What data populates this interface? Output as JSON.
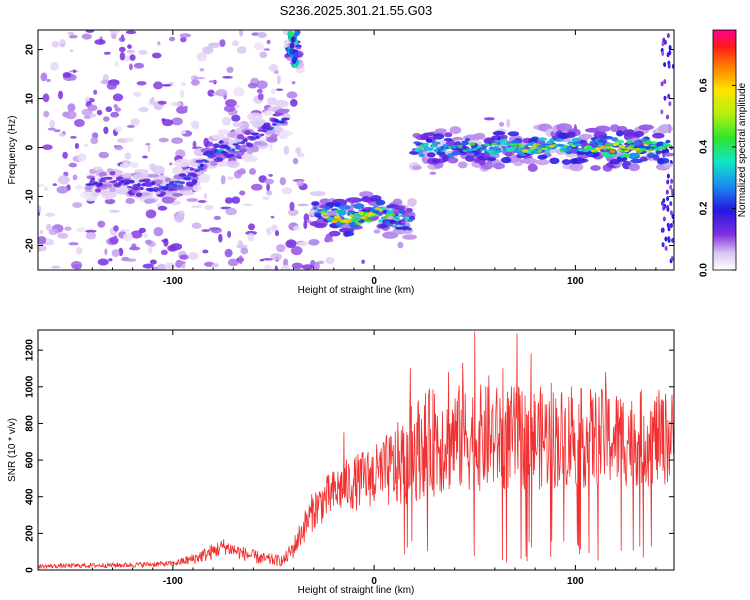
{
  "title": "S236.2025.301.21.55.G03",
  "colors": {
    "snr_line": "#f03030",
    "axis": "#000000"
  },
  "chart_data": [
    {
      "type": "heatmap",
      "name": "spectrogram",
      "xlabel": "Height of straight line (km)",
      "ylabel": "Frequency (Hz)",
      "xlim": [
        -167,
        149
      ],
      "ylim": [
        -25,
        24
      ],
      "xticks": [
        "-100",
        "0",
        "100"
      ],
      "xtick_values": [
        -100,
        0,
        100
      ],
      "yticks": [
        "-20",
        "-10",
        "0",
        "10",
        "20"
      ],
      "ytick_values": [
        -20,
        -10,
        0,
        10,
        20
      ],
      "colorbar": {
        "label": "Normalized spectral amplitude",
        "range": [
          0,
          0.78
        ],
        "ticks": [
          "0.0",
          "0.2",
          "0.4",
          "0.6"
        ],
        "tick_values": [
          0.0,
          0.2,
          0.4,
          0.6
        ],
        "colormap": "rainbow"
      },
      "signal_track": [
        {
          "x": -145,
          "freq": -7,
          "amp": 0.22
        },
        {
          "x": -130,
          "freq": -7,
          "amp": 0.2
        },
        {
          "x": -115,
          "freq": -8,
          "amp": 0.24
        },
        {
          "x": -100,
          "freq": -8,
          "amp": 0.25
        },
        {
          "x": -90,
          "freq": -6,
          "amp": 0.26
        },
        {
          "x": -80,
          "freq": -1,
          "amp": 0.28
        },
        {
          "x": -70,
          "freq": 0,
          "amp": 0.26
        },
        {
          "x": -60,
          "freq": 2,
          "amp": 0.24
        },
        {
          "x": -45,
          "freq": 6,
          "amp": 0.25
        },
        {
          "x": -40,
          "freq": 20,
          "amp": 0.3
        },
        {
          "x": -30,
          "freq": -13,
          "amp": 0.4
        },
        {
          "x": -15,
          "freq": -15,
          "amp": 0.75
        },
        {
          "x": 0,
          "freq": -13,
          "amp": 0.6
        },
        {
          "x": 15,
          "freq": -15,
          "amp": 0.4
        },
        {
          "x": 25,
          "freq": 0,
          "amp": 0.45
        },
        {
          "x": 50,
          "freq": 0,
          "amp": 0.45
        },
        {
          "x": 75,
          "freq": 0,
          "amp": 0.55
        },
        {
          "x": 100,
          "freq": 0,
          "amp": 0.5
        },
        {
          "x": 125,
          "freq": 0,
          "amp": 0.78
        },
        {
          "x": 145,
          "freq": 0,
          "amp": 0.5
        }
      ]
    },
    {
      "type": "line",
      "name": "snr",
      "xlabel": "Height of straight line (km)",
      "ylabel": "SNR (10 * v/v)",
      "xlim": [
        -167,
        149
      ],
      "ylim": [
        0,
        1310
      ],
      "xticks": [
        "-100",
        "0",
        "100"
      ],
      "xtick_values": [
        -100,
        0,
        100
      ],
      "yticks": [
        "0",
        "200",
        "400",
        "600",
        "800",
        "1000",
        "1200"
      ],
      "ytick_values": [
        0,
        200,
        400,
        600,
        800,
        1000,
        1200
      ],
      "envelope": {
        "x": [
          -167,
          -140,
          -120,
          -100,
          -90,
          -80,
          -75,
          -65,
          -55,
          -45,
          -40,
          -35,
          -30,
          -25,
          -20,
          -15,
          -10,
          -5,
          0,
          5,
          10,
          15,
          20,
          25,
          30,
          35,
          40,
          45,
          50,
          60,
          70,
          80,
          90,
          100,
          110,
          120,
          130,
          140,
          149
        ],
        "y": [
          20,
          25,
          28,
          35,
          60,
          100,
          130,
          90,
          60,
          50,
          120,
          230,
          330,
          380,
          420,
          460,
          470,
          500,
          510,
          530,
          560,
          590,
          650,
          690,
          700,
          710,
          720,
          720,
          720,
          720,
          720,
          720,
          720,
          720,
          720,
          720,
          720,
          720,
          720
        ]
      },
      "spread": {
        "x": [
          -167,
          -100,
          -80,
          -45,
          -30,
          -10,
          0,
          20,
          30,
          149
        ],
        "y": [
          12,
          15,
          45,
          30,
          110,
          150,
          170,
          280,
          300,
          260
        ]
      },
      "peaks": [
        {
          "x": -15,
          "y": 750
        },
        {
          "x": 18,
          "y": 1100
        },
        {
          "x": 30,
          "y": 960
        },
        {
          "x": 37,
          "y": 1080
        },
        {
          "x": 44,
          "y": 1130
        },
        {
          "x": 50,
          "y": 1300
        },
        {
          "x": 57,
          "y": 1060
        },
        {
          "x": 64,
          "y": 1100
        },
        {
          "x": 71,
          "y": 1290
        },
        {
          "x": 78,
          "y": 1180
        },
        {
          "x": 88,
          "y": 1020
        },
        {
          "x": 98,
          "y": 1000
        },
        {
          "x": 115,
          "y": 1080
        },
        {
          "x": 128,
          "y": 920
        },
        {
          "x": 145,
          "y": 910
        }
      ]
    }
  ]
}
